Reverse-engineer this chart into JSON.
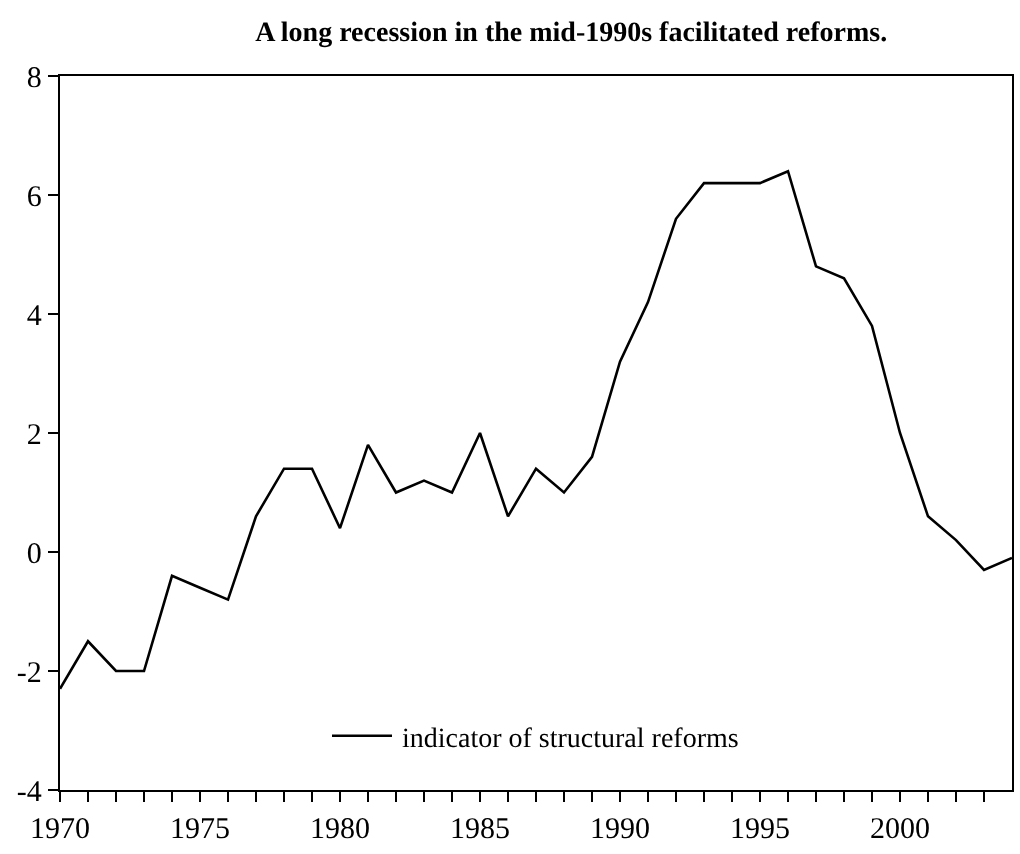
{
  "chart_data": {
    "type": "line",
    "title": "A long recession in the mid-1990s facilitated reforms.",
    "x": [
      1970,
      1971,
      1972,
      1973,
      1974,
      1975,
      1976,
      1977,
      1978,
      1979,
      1980,
      1981,
      1982,
      1983,
      1984,
      1985,
      1986,
      1987,
      1988,
      1989,
      1990,
      1991,
      1992,
      1993,
      1994,
      1995,
      1996,
      1997,
      1998,
      1999,
      2000,
      2001,
      2002,
      2003,
      2004
    ],
    "series": [
      {
        "name": "indicator of structural reforms",
        "color": "#000000",
        "values": [
          -2.3,
          -1.5,
          -2.0,
          -2.0,
          -0.4,
          -0.6,
          -0.8,
          0.6,
          1.4,
          1.4,
          0.4,
          1.8,
          1.0,
          1.2,
          1.0,
          2.0,
          0.6,
          1.4,
          1.0,
          1.6,
          3.2,
          4.2,
          5.6,
          6.2,
          6.2,
          6.2,
          6.4,
          4.8,
          4.6,
          3.8,
          2.0,
          0.6,
          0.2,
          -0.3,
          -0.1
        ]
      }
    ],
    "xlim": [
      1970,
      2004
    ],
    "xticks": [
      1970,
      {
        "value": 1971,
        "label": null
      },
      {
        "value": 1972,
        "label": null
      },
      {
        "value": 1973,
        "label": null
      },
      {
        "value": 1974,
        "label": null
      },
      1975,
      {
        "value": 1976,
        "label": null
      },
      {
        "value": 1977,
        "label": null
      },
      {
        "value": 1978,
        "label": null
      },
      {
        "value": 1979,
        "label": null
      },
      1980,
      {
        "value": 1981,
        "label": null
      },
      {
        "value": 1982,
        "label": null
      },
      {
        "value": 1983,
        "label": null
      },
      {
        "value": 1984,
        "label": null
      },
      1985,
      {
        "value": 1986,
        "label": null
      },
      {
        "value": 1987,
        "label": null
      },
      {
        "value": 1988,
        "label": null
      },
      {
        "value": 1989,
        "label": null
      },
      1990,
      {
        "value": 1991,
        "label": null
      },
      {
        "value": 1992,
        "label": null
      },
      {
        "value": 1993,
        "label": null
      },
      {
        "value": 1994,
        "label": null
      },
      1995,
      {
        "value": 1996,
        "label": null
      },
      {
        "value": 1997,
        "label": null
      },
      {
        "value": 1998,
        "label": null
      },
      {
        "value": 1999,
        "label": null
      },
      2000,
      {
        "value": 2001,
        "label": null
      },
      {
        "value": 2002,
        "label": null
      },
      {
        "value": 2003,
        "label": null
      }
    ],
    "ylim": [
      -4,
      8
    ],
    "yticks": [
      -4,
      -2,
      0,
      2,
      4,
      6,
      8
    ],
    "legend": "bottom",
    "line_style": "solid",
    "marker": "none"
  }
}
